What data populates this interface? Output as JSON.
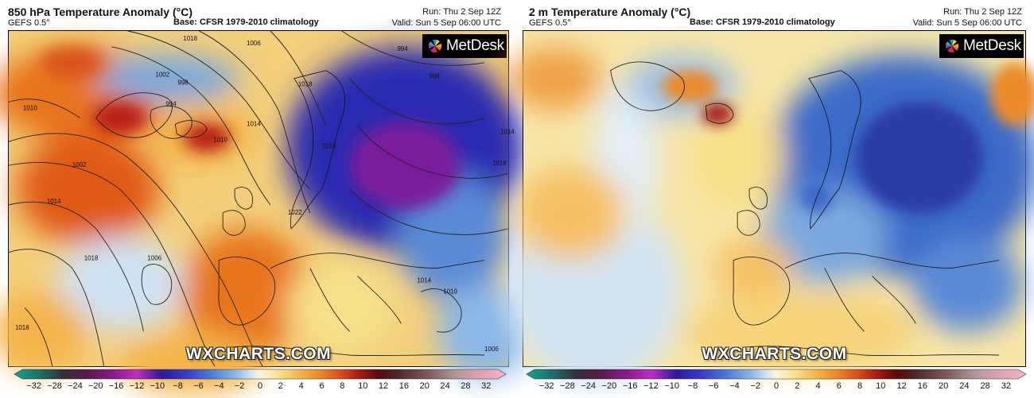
{
  "panels": [
    {
      "id": "left",
      "title": "850 hPa Temperature Anomaly (°C)",
      "model": "GEFS 0.5°",
      "base": "Base: CFSR 1979-2010 climatology",
      "run": "Run: Thu 2 Sep 12Z",
      "valid": "Valid: Sun 5 Sep 06:00 UTC",
      "logo_text": "MetDesk",
      "watermark": "WXCHARTS.COM",
      "isobar_labels": [
        "1018",
        "1006",
        "1002",
        "998",
        "994",
        "1010",
        "1014",
        "1018",
        "1002",
        "1014",
        "1018",
        "1006",
        "1018",
        "1022",
        "1010",
        "994",
        "998",
        "1010",
        "1014",
        "1018",
        "1014",
        "1010",
        "1006"
      ]
    },
    {
      "id": "right",
      "title": "2 m Temperature Anomaly (°C)",
      "model": "GEFS 0.5°",
      "base": "Base: CFSR 1979-2010 climatology",
      "run": "Run: Thu 2 Sep 12Z",
      "valid": "Valid: Sun 5 Sep 06:00 UTC",
      "logo_text": "MetDesk",
      "watermark": "WXCHARTS.COM"
    }
  ],
  "colorbar": {
    "ticks": [
      "−32",
      "−28",
      "−24",
      "−20",
      "−16",
      "−12",
      "−10",
      "−8",
      "−6",
      "−4",
      "−2",
      "0",
      "2",
      "4",
      "6",
      "8",
      "10",
      "12",
      "16",
      "20",
      "24",
      "28",
      "32"
    ],
    "colors": [
      "#19a28c",
      "#1f6f6a",
      "#31313b",
      "#5a1a4a",
      "#8a1a8a",
      "#b92fc2",
      "#2a1a9a",
      "#3a3ac8",
      "#4a7ad8",
      "#8ab8e8",
      "#cfe2f3",
      "#fbf6dc",
      "#f7e08a",
      "#f6b44a",
      "#ec8a2a",
      "#d8541e",
      "#a81c14",
      "#5a0a0a",
      "#4a2a2a",
      "#7a5a5a",
      "#b29a9a",
      "#e2a2b2",
      "#f0b8c8"
    ]
  }
}
